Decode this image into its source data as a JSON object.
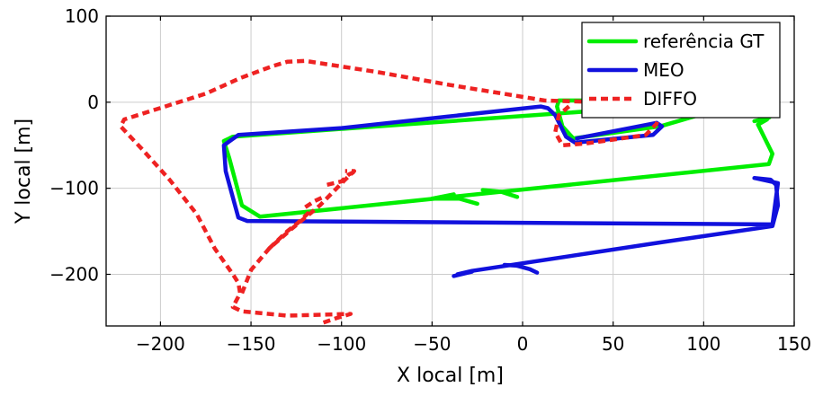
{
  "chart_data": {
    "type": "line",
    "title": "",
    "xlabel": "X local [m]",
    "ylabel": "Y local [m]",
    "xlim": [
      -230,
      150
    ],
    "ylim": [
      -260,
      100
    ],
    "xticks": [
      -200,
      -150,
      -100,
      -50,
      0,
      50,
      100,
      150
    ],
    "yticks": [
      -200,
      -100,
      0,
      100
    ],
    "xtick_labels": [
      "−200",
      "−150",
      "−100",
      "−50",
      "0",
      "50",
      "100",
      "150"
    ],
    "ytick_labels": [
      "−200",
      "−100",
      "0",
      "100"
    ],
    "grid": true,
    "legend_position": "top-right",
    "series": [
      {
        "name": "referência GT",
        "color": "#00ee00",
        "style": "solid",
        "points": [
          [
            135,
            -20
          ],
          [
            130,
            -26
          ],
          [
            138,
            -60
          ],
          [
            136,
            -72
          ],
          [
            -145,
            -133
          ],
          [
            -155,
            -120
          ],
          [
            -162,
            -65
          ],
          [
            -165,
            -45
          ],
          [
            -160,
            -40
          ],
          [
            120,
            2
          ],
          [
            122,
            0
          ],
          [
            76,
            -28
          ],
          [
            28,
            -42
          ],
          [
            22,
            -28
          ],
          [
            19,
            -5
          ],
          [
            20,
            2
          ],
          [
            138,
            2
          ],
          [
            140,
            -10
          ],
          [
            136,
            -18
          ],
          [
            128,
            -22
          ]
        ],
        "extras": [
          [
            [
              -50,
              -112
            ],
            [
              -35,
              -112
            ],
            [
              -25,
              -118
            ]
          ],
          [
            [
              -50,
              -112
            ],
            [
              -38,
              -107
            ]
          ],
          [
            [
              -12,
              -104
            ],
            [
              -3,
              -110
            ]
          ],
          [
            [
              -12,
              -104
            ],
            [
              -22,
              -102
            ]
          ]
        ]
      },
      {
        "name": "MEO",
        "color": "#1111dd",
        "style": "solid",
        "points": [
          [
            -36,
            -200
          ],
          [
            -28,
            -196
          ],
          [
            76,
            -163
          ],
          [
            138,
            -144
          ],
          [
            141,
            -120
          ],
          [
            140,
            -96
          ],
          [
            137,
            -90
          ],
          [
            128,
            -88
          ],
          [
            141,
            -94
          ],
          [
            138,
            -142
          ],
          [
            -152,
            -138
          ],
          [
            -157,
            -134
          ],
          [
            -164,
            -80
          ],
          [
            -165,
            -50
          ],
          [
            -157,
            -38
          ],
          [
            -100,
            -30
          ],
          [
            10,
            -5
          ],
          [
            14,
            -7
          ],
          [
            18,
            -15
          ],
          [
            24,
            -40
          ],
          [
            29,
            -47
          ],
          [
            72,
            -38
          ],
          [
            77,
            -28
          ],
          [
            74,
            -24
          ],
          [
            30,
            -42
          ]
        ],
        "extras": [
          [
            [
              -38,
              -202
            ],
            [
              -28,
              -197
            ]
          ],
          [
            [
              -3,
              -190
            ],
            [
              4,
              -194
            ],
            [
              8,
              -198
            ]
          ],
          [
            [
              -3,
              -190
            ],
            [
              -10,
              -189
            ]
          ]
        ]
      },
      {
        "name": "DIFFO",
        "color": "#ee2222",
        "style": "dashed",
        "points": [
          [
            -110,
            -256
          ],
          [
            -103,
            -251
          ],
          [
            -95,
            -246
          ],
          [
            -130,
            -248
          ],
          [
            -155,
            -243
          ],
          [
            -160,
            -238
          ],
          [
            -156,
            -222
          ],
          [
            -157,
            -210
          ],
          [
            -160,
            -200
          ],
          [
            -170,
            -170
          ],
          [
            -180,
            -130
          ],
          [
            -195,
            -90
          ],
          [
            -210,
            -55
          ],
          [
            -222,
            -28
          ],
          [
            -220,
            -20
          ],
          [
            -175,
            10
          ],
          [
            -156,
            28
          ],
          [
            -138,
            42
          ],
          [
            -130,
            47
          ],
          [
            -120,
            48
          ],
          [
            -80,
            35
          ],
          [
            -40,
            20
          ],
          [
            -5,
            8
          ],
          [
            12,
            2
          ],
          [
            45,
            0
          ],
          [
            75,
            1
          ],
          [
            76,
            -10
          ],
          [
            74,
            -25
          ],
          [
            68,
            -38
          ],
          [
            35,
            -48
          ],
          [
            22,
            -50
          ],
          [
            18,
            -35
          ],
          [
            20,
            -15
          ],
          [
            26,
            -4
          ]
        ],
        "extras": [
          [
            [
              -155,
              -222
            ],
            [
              -150,
              -195
            ],
            [
              -140,
              -170
            ],
            [
              -128,
              -148
            ],
            [
              -112,
              -120
            ],
            [
              -98,
              -90
            ],
            [
              -93,
              -80
            ],
            [
              -98,
              -80
            ]
          ],
          [
            [
              -140,
              -170
            ],
            [
              -130,
              -150
            ],
            [
              -124,
              -140
            ],
            [
              -118,
              -128
            ]
          ],
          [
            [
              -120,
              -122
            ],
            [
              -115,
              -115
            ],
            [
              -110,
              -110
            ]
          ],
          [
            [
              -108,
              -96
            ],
            [
              -100,
              -92
            ],
            [
              -96,
              -84
            ],
            [
              -92,
              -80
            ]
          ]
        ]
      }
    ]
  }
}
